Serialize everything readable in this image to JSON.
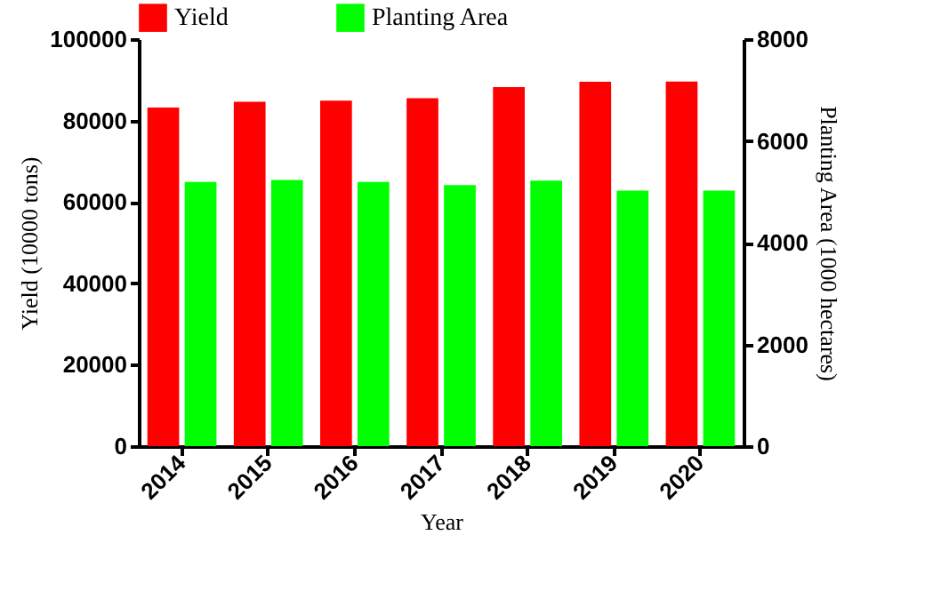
{
  "chart_data": {
    "type": "bar",
    "categories": [
      "2014",
      "2015",
      "2016",
      "2017",
      "2018",
      "2019",
      "2020"
    ],
    "xlabel": "Year",
    "ylabel": "Yield (10000 tons)",
    "y2label": "Planting Area (1000 hectares)",
    "series": [
      {
        "name": "Yield",
        "color": "#ff0000",
        "values": [
          83200,
          84600,
          84900,
          85500,
          88200,
          89500,
          89600
        ]
      },
      {
        "name": "Planting Area",
        "color": "#00ff00",
        "axis": "y2",
        "values": [
          5190,
          5230,
          5190,
          5130,
          5220,
          5020,
          5020
        ]
      }
    ],
    "ylim": [
      0,
      100000
    ],
    "yticks": [
      0,
      20000,
      40000,
      60000,
      80000,
      100000
    ],
    "y2lim": [
      0,
      8000
    ],
    "y2ticks": [
      0,
      2000,
      4000,
      6000,
      8000
    ],
    "legend": "top",
    "grid": false
  }
}
